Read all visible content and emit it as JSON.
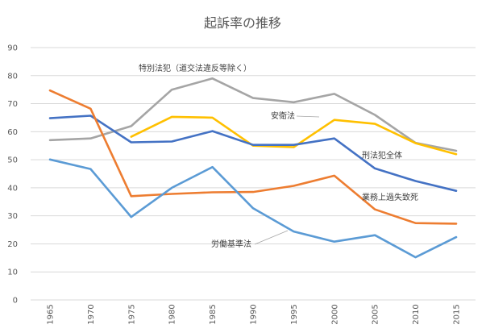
{
  "chart_data": {
    "type": "line",
    "title": "起訴率の推移",
    "x": [
      "1965",
      "1970",
      "1975",
      "1980",
      "1985",
      "1990",
      "1995",
      "2000",
      "2005",
      "2010",
      "2015"
    ],
    "ylim": [
      0,
      90
    ],
    "yticks": [
      0,
      10,
      20,
      30,
      40,
      50,
      60,
      70,
      80,
      90
    ],
    "grid": "horizontal",
    "legend": "none (inline annotations)",
    "series": [
      {
        "name": "特別法犯（道交法違反等除く）",
        "color": "#a5a5a5",
        "values": [
          57,
          57.6,
          62,
          75,
          79,
          72,
          70.5,
          73.5,
          66,
          56,
          53.2
        ]
      },
      {
        "name": "安衛法",
        "color": "#ffc000",
        "values": [
          null,
          null,
          58.2,
          65.3,
          65,
          55,
          54.5,
          64.2,
          62.8,
          55.9,
          52
        ]
      },
      {
        "name": "刑法犯全体",
        "color": "#4472c4",
        "values": [
          64.8,
          65.7,
          56.2,
          56.5,
          60.2,
          55.3,
          55.3,
          57.6,
          46.9,
          42.4,
          38.9
        ]
      },
      {
        "name": "業務上過失致死",
        "color": "#ed7d31",
        "values": [
          74.7,
          68.2,
          37,
          37.8,
          38.4,
          38.5,
          40.7,
          44.3,
          32.3,
          27.4,
          27.2
        ]
      },
      {
        "name": "労働基準法",
        "color": "#5b9bd5",
        "values": [
          50.1,
          46.7,
          29.6,
          40,
          47.4,
          32.7,
          24.4,
          20.8,
          23.1,
          15.2,
          22.4
        ]
      }
    ]
  }
}
